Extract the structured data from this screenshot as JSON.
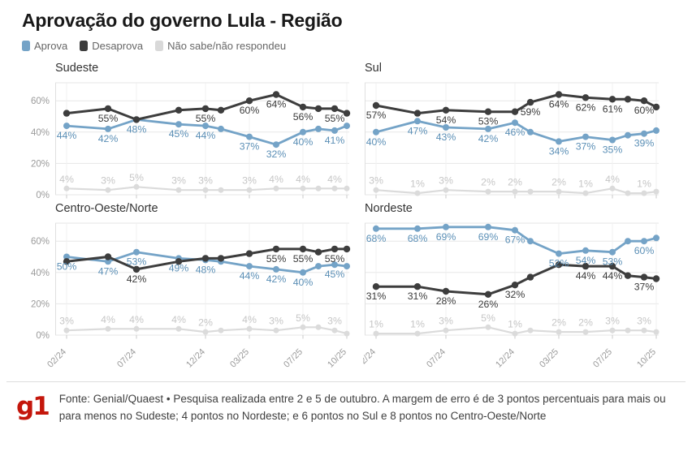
{
  "title": "Aprovação do governo Lula - Região",
  "legend": [
    {
      "label": "Aprova",
      "color": "#74a3c7"
    },
    {
      "label": "Desaprova",
      "color": "#3d3d3d"
    },
    {
      "label": "Não sabe/não respondeu",
      "color": "#d9d9d9"
    }
  ],
  "footer": {
    "logo": "g1",
    "logo_color": "#c4170c",
    "source_text": "Fonte: Genial/Quaest • Pesquisa realizada entre 2 e 5 de outubro. A margem de erro é de 3 pontos percentuais para mais ou para menos no Sudeste; 4 pontos no Nordeste; e 6 pontos no Sul e 8 pontos no Centro-Oeste/Norte"
  },
  "chart_data": {
    "type": "line",
    "title": "Aprovação do governo Lula - Região",
    "x_tick_labels": [
      "02/24",
      "07/24",
      "12/24",
      "03/25",
      "07/25",
      "10/25"
    ],
    "x_tick_wave_indices": [
      0,
      2,
      4,
      6,
      8,
      11
    ],
    "x_positions": [
      14,
      65,
      100,
      152,
      185,
      204,
      239,
      272,
      305,
      324,
      344,
      359
    ],
    "y_ticks": [
      "0%",
      "20%",
      "40%",
      "60%"
    ],
    "ylim": [
      0,
      72
    ],
    "grid": true,
    "legend_position": "top",
    "series_style": {
      "aprova": {
        "name": "Aprova",
        "color": "#74a3c7",
        "label_color": "#5b8fb6",
        "width": 2.8,
        "r": 4,
        "label_dy": 16
      },
      "desaprova": {
        "name": "Desaprova",
        "color": "#3d3d3d",
        "label_color": "#3a3a3a",
        "width": 3,
        "r": 4.2,
        "label_dy": 16
      },
      "nao_sabe": {
        "name": "Não sabe/não respondeu",
        "color": "#dbdbdb",
        "label_color": "#c6c6c6",
        "width": 2.2,
        "r": 3.5,
        "label_dy": -7.5
      }
    },
    "charts": [
      {
        "title": "Sudeste",
        "series": [
          {
            "key": "aprova",
            "values": [
              44,
              42,
              48,
              45,
              44,
              42,
              37,
              32,
              40,
              42,
              41,
              44
            ],
            "labels": [
              44,
              42,
              48,
              45,
              44,
              null,
              37,
              32,
              40,
              null,
              41,
              null
            ]
          },
          {
            "key": "desaprova",
            "values": [
              52,
              55,
              48,
              54,
              55,
              54,
              60,
              64,
              56,
              55,
              55,
              52
            ],
            "labels": [
              null,
              55,
              null,
              null,
              55,
              null,
              60,
              64,
              56,
              null,
              55,
              null
            ]
          },
          {
            "key": "nao_sabe",
            "values": [
              4,
              3,
              5,
              3,
              3,
              3,
              3,
              4,
              4,
              4,
              4,
              4
            ],
            "labels": [
              4,
              3,
              5,
              3,
              3,
              null,
              3,
              4,
              4,
              null,
              4,
              null
            ]
          }
        ]
      },
      {
        "title": "Sul",
        "series": [
          {
            "key": "aprova",
            "values": [
              40,
              47,
              43,
              42,
              46,
              40,
              34,
              37,
              35,
              38,
              39,
              41
            ],
            "labels": [
              40,
              47,
              43,
              42,
              46,
              null,
              34,
              37,
              35,
              null,
              39,
              null
            ]
          },
          {
            "key": "desaprova",
            "values": [
              57,
              52,
              54,
              53,
              53,
              59,
              64,
              62,
              61,
              61,
              60,
              56
            ],
            "labels": [
              57,
              null,
              54,
              53,
              null,
              59,
              64,
              62,
              61,
              null,
              60,
              null
            ]
          },
          {
            "key": "nao_sabe",
            "values": [
              3,
              1,
              3,
              2,
              2,
              2,
              2,
              1,
              4,
              1,
              1,
              2
            ],
            "labels": [
              3,
              1,
              3,
              2,
              2,
              null,
              2,
              1,
              4,
              null,
              1,
              null
            ]
          }
        ]
      },
      {
        "title": "Centro-Oeste/Norte",
        "series": [
          {
            "key": "aprova",
            "values": [
              50,
              47,
              53,
              49,
              48,
              47,
              44,
              42,
              40,
              44,
              45,
              44
            ],
            "labels": [
              50,
              47,
              53,
              49,
              48,
              null,
              44,
              42,
              40,
              null,
              45,
              null
            ]
          },
          {
            "key": "desaprova",
            "values": [
              47,
              50,
              42,
              47,
              49,
              49,
              52,
              55,
              55,
              53,
              55,
              55
            ],
            "labels": [
              null,
              null,
              42,
              null,
              null,
              null,
              null,
              55,
              55,
              null,
              55,
              null
            ]
          },
          {
            "key": "nao_sabe",
            "values": [
              3,
              4,
              4,
              4,
              2,
              3,
              4,
              3,
              5,
              5,
              3,
              1
            ],
            "labels": [
              3,
              4,
              4,
              4,
              2,
              null,
              4,
              3,
              5,
              null,
              3,
              null
            ]
          }
        ]
      },
      {
        "title": "Nordeste",
        "series": [
          {
            "key": "aprova",
            "values": [
              68,
              68,
              69,
              69,
              67,
              60,
              52,
              54,
              53,
              60,
              60,
              62
            ],
            "labels": [
              68,
              68,
              69,
              69,
              67,
              null,
              52,
              54,
              53,
              null,
              60,
              null
            ]
          },
          {
            "key": "desaprova",
            "values": [
              31,
              31,
              28,
              26,
              32,
              37,
              45,
              44,
              44,
              38,
              37,
              36
            ],
            "labels": [
              31,
              31,
              28,
              26,
              32,
              null,
              null,
              44,
              44,
              null,
              37,
              null
            ]
          },
          {
            "key": "nao_sabe",
            "values": [
              1,
              1,
              3,
              5,
              1,
              3,
              2,
              2,
              3,
              3,
              3,
              2
            ],
            "labels": [
              1,
              1,
              3,
              5,
              1,
              null,
              2,
              2,
              3,
              null,
              3,
              null
            ]
          }
        ]
      }
    ]
  }
}
